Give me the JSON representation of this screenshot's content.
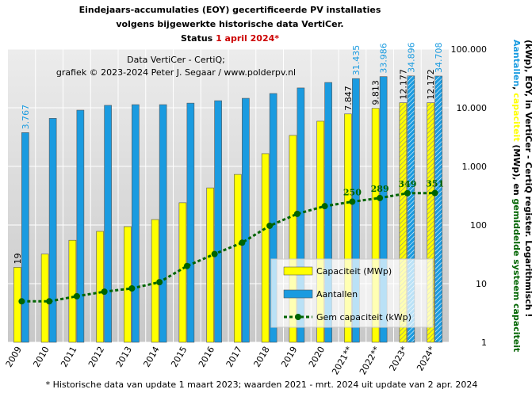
{
  "chart_data": {
    "type": "bar-line",
    "title_lines": [
      [
        {
          "text": "Eindejaars-accumulaties (EOY) gecertificeerde PV installaties",
          "color": "#000000"
        }
      ],
      [
        {
          "text": "volgens bijgewerkte historische data VertiCer.",
          "color": "#000000"
        }
      ],
      [
        {
          "text": "Status ",
          "color": "#000000"
        },
        {
          "text": "1 april 2024*",
          "color": "#cc0000"
        }
      ]
    ],
    "annotation_lines": [
      "Data VertiCer - CertiQ;",
      "grafiek © 2023-2024 Peter J. Segaar / www.polderpv.nl"
    ],
    "footnote": "* Historische data van update 1 maart 2023; waarden 2021 - mrt. 2024 uit update van 2 apr. 2024",
    "y_label_lines": [
      [
        {
          "text": "Aantallen",
          "color": "#1a9be0"
        },
        {
          "text": ", ",
          "color": "#000000"
        },
        {
          "text": "capaciteit",
          "color": "#ffff00"
        },
        {
          "text": " (MWp), en ",
          "color": "#000000"
        },
        {
          "text": "gemiddelde systeem capaciteit",
          "color": "#006400"
        }
      ],
      [
        {
          "text": "(kWp), EOY, in VertiCer - CertiQ register. Logarithmisch !",
          "color": "#000000"
        }
      ]
    ],
    "categories": [
      "2009",
      "2010",
      "2011",
      "2012",
      "2013",
      "2014",
      "2015",
      "2016",
      "2017",
      "2018",
      "2019",
      "2020",
      "2021**",
      "2022**",
      "2023*",
      "2024*"
    ],
    "hatched": [
      false,
      false,
      false,
      false,
      false,
      false,
      false,
      false,
      false,
      false,
      false,
      false,
      false,
      false,
      true,
      true
    ],
    "series": [
      {
        "name": "Capaciteit (MWp)",
        "color": "#ffff00",
        "label_color": "#000000",
        "mark": "bar",
        "values": [
          19,
          32,
          55,
          78,
          94,
          124,
          240,
          430,
          730,
          1650,
          3380,
          5900,
          7847,
          9813,
          12177,
          12172
        ],
        "value_labels": [
          "19",
          null,
          null,
          null,
          null,
          null,
          null,
          null,
          null,
          null,
          null,
          null,
          "7.847",
          "9.813",
          "12.177",
          "12.172"
        ]
      },
      {
        "name": "Aantallen",
        "color": "#1a9be0",
        "label_color": "#1a9be0",
        "mark": "bar",
        "values": [
          3767,
          6600,
          9100,
          11000,
          11300,
          11300,
          12000,
          13200,
          14500,
          17500,
          21800,
          27000,
          31435,
          33986,
          34896,
          34708
        ],
        "value_labels": [
          "3.767",
          null,
          null,
          null,
          null,
          null,
          null,
          null,
          null,
          null,
          null,
          null,
          "31.435",
          "33.986",
          "34.896",
          "34.708"
        ]
      },
      {
        "name": "Gem capaciteit (kWp)",
        "color": "#006400",
        "label_color": "#006400",
        "mark": "line",
        "values": [
          5,
          5,
          6.1,
          7.3,
          8.3,
          10.6,
          20,
          32,
          50,
          97,
          155,
          210,
          250,
          289,
          349,
          351
        ],
        "value_labels": [
          null,
          null,
          null,
          null,
          null,
          null,
          null,
          null,
          null,
          null,
          null,
          null,
          "250",
          "289",
          "349",
          "351"
        ]
      }
    ],
    "log_scale": true,
    "ylim": [
      1,
      100000
    ],
    "yticks": [
      1,
      10,
      100,
      {
        "value": 1000,
        "label": "1.000"
      },
      {
        "value": 10000,
        "label": "10.000"
      },
      {
        "value": 100000,
        "label": "100.000"
      }
    ],
    "grid": true,
    "legend": "lower-right"
  }
}
